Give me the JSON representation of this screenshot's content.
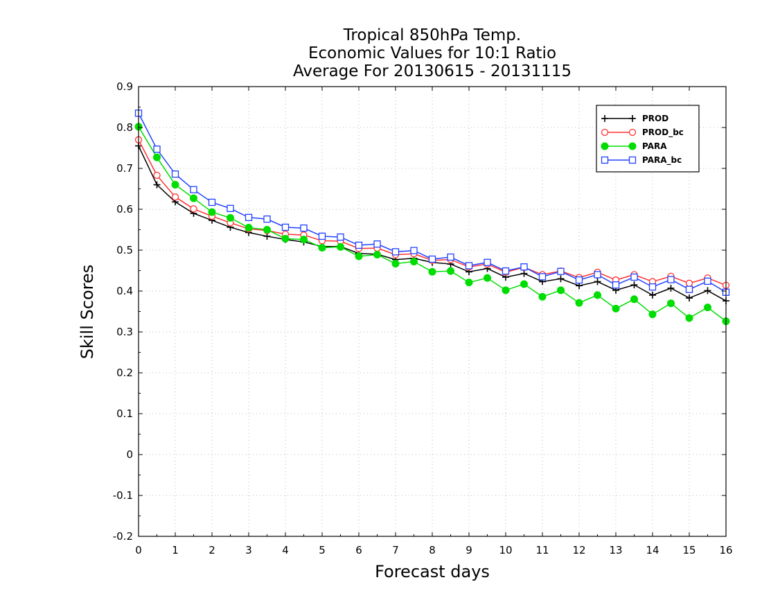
{
  "chart_data": {
    "type": "line",
    "title_lines": [
      "Tropical 850hPa Temp.",
      "Economic Values for 10:1 Ratio",
      "Average For 20130615 - 20131115"
    ],
    "xlabel": "Forecast days",
    "ylabel": "Skill Scores",
    "xlim": [
      0,
      16
    ],
    "ylim": [
      -0.2,
      0.9
    ],
    "xticks": [
      "0",
      "1",
      "2",
      "3",
      "4",
      "5",
      "6",
      "7",
      "8",
      "9",
      "10",
      "11",
      "12",
      "13",
      "14",
      "15",
      "16"
    ],
    "yticks": [
      "-0.2",
      "-0.1",
      "0",
      "0.1",
      "0.2",
      "0.3",
      "0.4",
      "0.5",
      "0.6",
      "0.7",
      "0.8",
      "0.9"
    ],
    "grid": true,
    "legend_position": "top-right",
    "x": [
      0,
      0.5,
      1,
      1.5,
      2,
      2.5,
      3,
      3.5,
      4,
      4.5,
      5,
      5.5,
      6,
      6.5,
      7,
      7.5,
      8,
      8.5,
      9,
      9.5,
      10,
      10.5,
      11,
      11.5,
      12,
      12.5,
      13,
      13.5,
      14,
      14.5,
      15,
      15.5,
      16
    ],
    "series": [
      {
        "name": "PROD",
        "color": "#000000",
        "marker": "plus",
        "values": [
          0.755,
          0.66,
          0.618,
          0.59,
          0.573,
          0.556,
          0.543,
          0.534,
          0.526,
          0.52,
          0.509,
          0.509,
          0.492,
          0.49,
          0.477,
          0.48,
          0.47,
          0.466,
          0.447,
          0.455,
          0.434,
          0.443,
          0.423,
          0.43,
          0.413,
          0.423,
          0.402,
          0.415,
          0.39,
          0.407,
          0.383,
          0.401,
          0.376
        ]
      },
      {
        "name": "PROD_bc",
        "color": "#ff3030",
        "marker": "open-circle",
        "values": [
          0.77,
          0.683,
          0.63,
          0.601,
          0.583,
          0.567,
          0.552,
          0.548,
          0.539,
          0.537,
          0.523,
          0.522,
          0.504,
          0.505,
          0.489,
          0.491,
          0.475,
          0.477,
          0.459,
          0.466,
          0.446,
          0.458,
          0.44,
          0.449,
          0.433,
          0.446,
          0.427,
          0.44,
          0.423,
          0.436,
          0.419,
          0.432,
          0.414
        ]
      },
      {
        "name": "PARA",
        "color": "#00dd00",
        "marker": "filled-circle",
        "values": [
          0.802,
          0.727,
          0.66,
          0.627,
          0.593,
          0.579,
          0.555,
          0.55,
          0.528,
          0.526,
          0.506,
          0.508,
          0.485,
          0.489,
          0.467,
          0.472,
          0.447,
          0.449,
          0.421,
          0.432,
          0.402,
          0.417,
          0.386,
          0.402,
          0.371,
          0.39,
          0.357,
          0.38,
          0.343,
          0.37,
          0.334,
          0.36,
          0.326
        ]
      },
      {
        "name": "PARA_bc",
        "color": "#2040ff",
        "marker": "open-square",
        "values": [
          0.835,
          0.747,
          0.686,
          0.648,
          0.617,
          0.602,
          0.58,
          0.576,
          0.556,
          0.554,
          0.534,
          0.532,
          0.512,
          0.515,
          0.496,
          0.499,
          0.478,
          0.483,
          0.462,
          0.47,
          0.449,
          0.459,
          0.435,
          0.448,
          0.427,
          0.44,
          0.415,
          0.434,
          0.41,
          0.428,
          0.404,
          0.424,
          0.397
        ]
      }
    ]
  }
}
